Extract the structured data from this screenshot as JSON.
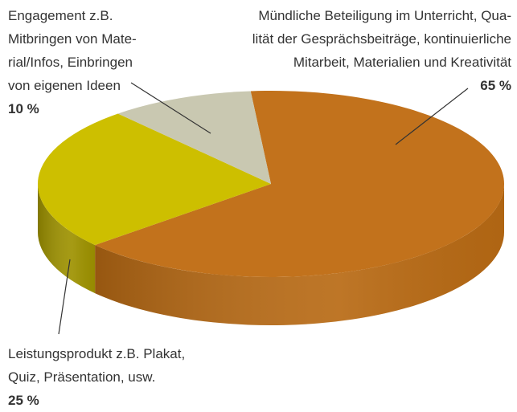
{
  "chart_data": {
    "type": "pie",
    "three_d": true,
    "categories": [
      "Mündliche Beteiligung im Unterricht, Qua-\nlität der Gesprächsbeiträge, kontinuierliche\nMitarbeit, Materialien und Kreativität",
      "Leistungsprodukt z.B. Plakat,\nQuiz, Präsentation, usw.",
      "Engagement z.B.\nMitbringen von Mate-\nrial/Infos, Einbringen\nvon eigenen Ideen"
    ],
    "values": [
      65,
      25,
      10
    ],
    "value_labels": [
      "65 %",
      "25 %",
      "10 %"
    ],
    "colors": [
      "#c2721c",
      "#cdbf00",
      "#c9c8b1"
    ],
    "side_colors": [
      "#b86a14",
      "#9e9200",
      "#a8a790"
    ]
  }
}
